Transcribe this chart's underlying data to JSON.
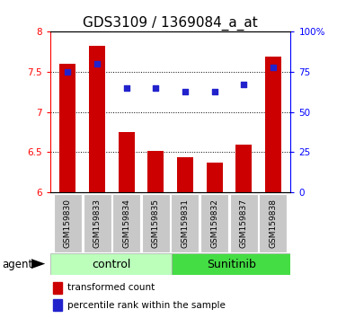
{
  "title": "GDS3109 / 1369084_a_at",
  "samples": [
    "GSM159830",
    "GSM159833",
    "GSM159834",
    "GSM159835",
    "GSM159831",
    "GSM159832",
    "GSM159837",
    "GSM159838"
  ],
  "transformed_count": [
    7.6,
    7.82,
    6.75,
    6.52,
    6.44,
    6.37,
    6.6,
    7.69
  ],
  "percentile_rank": [
    75,
    80,
    65,
    65,
    63,
    63,
    67,
    78
  ],
  "ylim": [
    6.0,
    8.0
  ],
  "yticks_left": [
    6.0,
    6.5,
    7.0,
    7.5,
    8.0
  ],
  "ytick_labels_left": [
    "6",
    "6.5",
    "7",
    "7.5",
    "8"
  ],
  "yticks_right_pct": [
    0,
    25,
    50,
    75,
    100
  ],
  "ytick_labels_right": [
    "0",
    "25",
    "50",
    "75",
    "100%"
  ],
  "group_labels": [
    "control",
    "Sunitinib"
  ],
  "bar_color": "#cc0000",
  "dot_color": "#2222cc",
  "control_bg_light": "#bbffbb",
  "sunitinib_bg_dark": "#44dd44",
  "sample_bg": "#c8c8c8",
  "legend_red_label": "transformed count",
  "legend_blue_label": "percentile rank within the sample",
  "agent_label": "agent",
  "title_fontsize": 11,
  "tick_fontsize": 7.5,
  "sample_fontsize": 6.5,
  "group_fontsize": 9,
  "legend_fontsize": 7.5
}
